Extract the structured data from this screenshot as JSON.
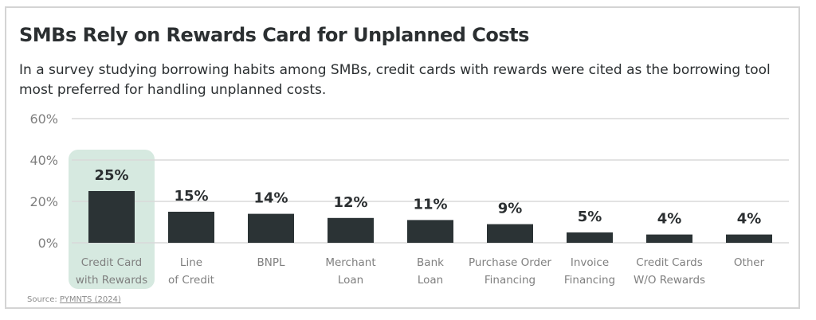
{
  "chart_data": {
    "type": "bar",
    "title": "SMBs Rely on Rewards Card for Unplanned Costs",
    "subtitle": "In a survey studying borrowing habits among SMBs, credit cards with rewards were cited as the borrowing tool most preferred for handling unplanned costs.",
    "categories": [
      [
        "Credit Card",
        "with Rewards"
      ],
      [
        "Line",
        "of Credit"
      ],
      [
        "BNPL"
      ],
      [
        "Merchant",
        "Loan"
      ],
      [
        "Bank",
        "Loan"
      ],
      [
        "Purchase Order",
        "Financing"
      ],
      [
        "Invoice",
        "Financing"
      ],
      [
        "Credit Cards",
        "W/O Rewards"
      ],
      [
        "Other"
      ]
    ],
    "values": [
      25,
      15,
      14,
      12,
      11,
      9,
      5,
      4,
      4
    ],
    "data_labels": [
      "25%",
      "15%",
      "14%",
      "12%",
      "11%",
      "9%",
      "5%",
      "4%",
      "4%"
    ],
    "highlighted_category_index": 0,
    "ylim": [
      0,
      60
    ],
    "yticks": [
      0,
      20,
      40,
      60
    ],
    "ytick_labels": [
      "0%",
      "20%",
      "40%",
      "60%"
    ],
    "grid": true,
    "xlabel": "",
    "ylabel": "",
    "colors": {
      "bar": "#2b3335",
      "highlight": "#d6e9e0",
      "grid": "#d9d9d9",
      "tick_text": "#7f7f7f"
    }
  },
  "source": {
    "prefix": "Source: ",
    "link": "PYMNTS (2024)"
  }
}
